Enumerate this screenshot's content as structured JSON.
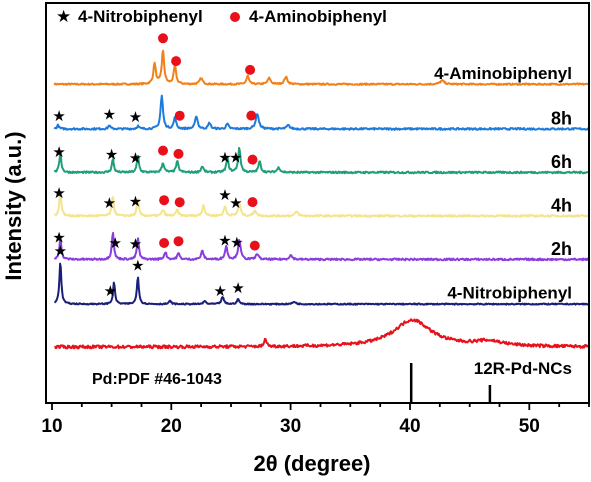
{
  "chart_data": {
    "type": "line",
    "title": "",
    "xlabel": "2θ (degree)",
    "ylabel": "Intensity (a.u.)",
    "xlim": [
      9.5,
      55
    ],
    "xticks": [
      10,
      20,
      30,
      40,
      50
    ],
    "y_ticks_shown": false,
    "legend": {
      "placement": "top-left",
      "entries": [
        {
          "label": "4-Nitrobiphenyl",
          "marker": "star",
          "color": "#000000"
        },
        {
          "label": "4-Aminobiphenyl",
          "marker": "circle",
          "color": "#e8101a"
        }
      ]
    },
    "reference": {
      "label": "Pd:PDF #46-1043",
      "lines": [
        {
          "x": 40.1,
          "intensity": 100
        },
        {
          "x": 46.7,
          "intensity": 45
        }
      ]
    },
    "series": [
      {
        "name": "4-Aminobiphenyl",
        "color": "#f28019",
        "offset": 6,
        "baseline": 0.08,
        "noise": 0.025,
        "peaks": [
          {
            "x": 18.6,
            "h": 0.35,
            "w": 0.12
          },
          {
            "x": 19.3,
            "h": 0.55,
            "w": 0.12
          },
          {
            "x": 20.3,
            "h": 0.3,
            "w": 0.12
          },
          {
            "x": 22.5,
            "h": 0.1,
            "w": 0.15
          },
          {
            "x": 26.4,
            "h": 0.14,
            "w": 0.12
          },
          {
            "x": 28.2,
            "h": 0.1,
            "w": 0.15
          },
          {
            "x": 29.6,
            "h": 0.12,
            "w": 0.15
          },
          {
            "x": 42.7,
            "h": 0.06,
            "w": 0.2
          }
        ],
        "markers": [
          {
            "x": 19.3,
            "type": "circle"
          },
          {
            "x": 20.4,
            "type": "circle"
          },
          {
            "x": 26.6,
            "type": "circle"
          }
        ]
      },
      {
        "name": "8h",
        "color": "#1e7bdc",
        "offset": 5,
        "baseline": 0.06,
        "noise": 0.03,
        "peaks": [
          {
            "x": 10.5,
            "h": 0.06,
            "w": 0.1
          },
          {
            "x": 14.8,
            "h": 0.06,
            "w": 0.1
          },
          {
            "x": 17.2,
            "h": 0.05,
            "w": 0.1
          },
          {
            "x": 19.2,
            "h": 0.55,
            "w": 0.12
          },
          {
            "x": 20.3,
            "h": 0.18,
            "w": 0.12
          },
          {
            "x": 22.1,
            "h": 0.22,
            "w": 0.12
          },
          {
            "x": 23.2,
            "h": 0.1,
            "w": 0.12
          },
          {
            "x": 24.7,
            "h": 0.08,
            "w": 0.12
          },
          {
            "x": 27.2,
            "h": 0.26,
            "w": 0.15
          },
          {
            "x": 29.8,
            "h": 0.06,
            "w": 0.15
          }
        ],
        "markers": [
          {
            "x": 10.6,
            "type": "star"
          },
          {
            "x": 14.8,
            "type": "star"
          },
          {
            "x": 17.0,
            "type": "star"
          },
          {
            "x": 20.7,
            "type": "circle"
          },
          {
            "x": 26.7,
            "type": "circle"
          }
        ]
      },
      {
        "name": "6h",
        "color": "#1f9e7a",
        "offset": 4,
        "baseline": 0.06,
        "noise": 0.03,
        "peaks": [
          {
            "x": 10.7,
            "h": 0.32,
            "w": 0.1
          },
          {
            "x": 15.1,
            "h": 0.22,
            "w": 0.1
          },
          {
            "x": 17.2,
            "h": 0.28,
            "w": 0.1
          },
          {
            "x": 19.3,
            "h": 0.16,
            "w": 0.12
          },
          {
            "x": 20.5,
            "h": 0.18,
            "w": 0.12
          },
          {
            "x": 22.6,
            "h": 0.1,
            "w": 0.12
          },
          {
            "x": 24.7,
            "h": 0.22,
            "w": 0.12
          },
          {
            "x": 25.7,
            "h": 0.4,
            "w": 0.12
          },
          {
            "x": 27.4,
            "h": 0.18,
            "w": 0.12
          },
          {
            "x": 29.0,
            "h": 0.08,
            "w": 0.15
          }
        ],
        "markers": [
          {
            "x": 10.6,
            "type": "star"
          },
          {
            "x": 15.0,
            "type": "star"
          },
          {
            "x": 17.0,
            "type": "star"
          },
          {
            "x": 19.3,
            "type": "circle"
          },
          {
            "x": 20.6,
            "type": "circle"
          },
          {
            "x": 24.5,
            "type": "star"
          },
          {
            "x": 25.4,
            "type": "star"
          },
          {
            "x": 26.8,
            "type": "circle"
          }
        ]
      },
      {
        "name": "4h",
        "color": "#f5e48e",
        "offset": 3,
        "baseline": 0.06,
        "noise": 0.03,
        "peaks": [
          {
            "x": 10.7,
            "h": 0.4,
            "w": 0.1
          },
          {
            "x": 15.1,
            "h": 0.34,
            "w": 0.1
          },
          {
            "x": 17.2,
            "h": 0.28,
            "w": 0.1
          },
          {
            "x": 19.3,
            "h": 0.1,
            "w": 0.12
          },
          {
            "x": 20.5,
            "h": 0.1,
            "w": 0.12
          },
          {
            "x": 22.7,
            "h": 0.18,
            "w": 0.12
          },
          {
            "x": 24.5,
            "h": 0.16,
            "w": 0.12
          },
          {
            "x": 25.7,
            "h": 0.22,
            "w": 0.12
          },
          {
            "x": 27.0,
            "h": 0.1,
            "w": 0.12
          },
          {
            "x": 30.5,
            "h": 0.07,
            "w": 0.15
          }
        ],
        "markers": [
          {
            "x": 10.6,
            "type": "star"
          },
          {
            "x": 14.8,
            "type": "star"
          },
          {
            "x": 17.0,
            "type": "star"
          },
          {
            "x": 19.4,
            "type": "circle"
          },
          {
            "x": 20.7,
            "type": "circle"
          },
          {
            "x": 24.5,
            "type": "star"
          },
          {
            "x": 25.4,
            "type": "star"
          },
          {
            "x": 26.8,
            "type": "circle"
          }
        ]
      },
      {
        "name": "2h",
        "color": "#8a3ddf",
        "offset": 2,
        "baseline": 0.06,
        "noise": 0.03,
        "peaks": [
          {
            "x": 10.7,
            "h": 0.36,
            "w": 0.1
          },
          {
            "x": 15.1,
            "h": 0.46,
            "w": 0.1
          },
          {
            "x": 17.2,
            "h": 0.36,
            "w": 0.1
          },
          {
            "x": 19.5,
            "h": 0.12,
            "w": 0.12
          },
          {
            "x": 20.6,
            "h": 0.1,
            "w": 0.12
          },
          {
            "x": 22.6,
            "h": 0.14,
            "w": 0.12
          },
          {
            "x": 24.6,
            "h": 0.22,
            "w": 0.12
          },
          {
            "x": 25.7,
            "h": 0.34,
            "w": 0.12
          },
          {
            "x": 27.2,
            "h": 0.1,
            "w": 0.12
          },
          {
            "x": 30.0,
            "h": 0.07,
            "w": 0.15
          }
        ],
        "markers": [
          {
            "x": 10.6,
            "type": "star"
          },
          {
            "x": 15.3,
            "type": "star"
          },
          {
            "x": 17.0,
            "type": "star"
          },
          {
            "x": 19.4,
            "type": "circle"
          },
          {
            "x": 20.6,
            "type": "circle"
          },
          {
            "x": 24.5,
            "type": "star"
          },
          {
            "x": 25.5,
            "type": "star"
          },
          {
            "x": 27.0,
            "type": "circle"
          }
        ]
      },
      {
        "name": "4-Nitrobiphenyl",
        "color": "#1a1f78",
        "offset": 1,
        "baseline": 0.04,
        "noise": 0.02,
        "peaks": [
          {
            "x": 10.7,
            "h": 0.7,
            "w": 0.1
          },
          {
            "x": 15.2,
            "h": 0.36,
            "w": 0.1
          },
          {
            "x": 17.2,
            "h": 0.46,
            "w": 0.1
          },
          {
            "x": 19.9,
            "h": 0.05,
            "w": 0.12
          },
          {
            "x": 22.8,
            "h": 0.05,
            "w": 0.12
          },
          {
            "x": 24.3,
            "h": 0.12,
            "w": 0.12
          },
          {
            "x": 25.6,
            "h": 0.08,
            "w": 0.12
          },
          {
            "x": 30.3,
            "h": 0.04,
            "w": 0.15
          }
        ],
        "markers": [
          {
            "x": 10.7,
            "type": "star"
          },
          {
            "x": 14.9,
            "type": "star"
          },
          {
            "x": 17.2,
            "type": "star"
          },
          {
            "x": 24.1,
            "type": "star"
          },
          {
            "x": 25.6,
            "type": "star"
          }
        ]
      },
      {
        "name": "12R-Pd-NCs",
        "color": "#e8101a",
        "offset": 0,
        "baseline": 0.05,
        "noise": 0.05,
        "peaks": [
          {
            "x": 27.9,
            "h": 0.14,
            "w": 0.1
          },
          {
            "x": 40.2,
            "h": 0.45,
            "w": 1.9
          },
          {
            "x": 46.6,
            "h": 0.08,
            "w": 1.5
          }
        ],
        "markers": []
      }
    ]
  }
}
